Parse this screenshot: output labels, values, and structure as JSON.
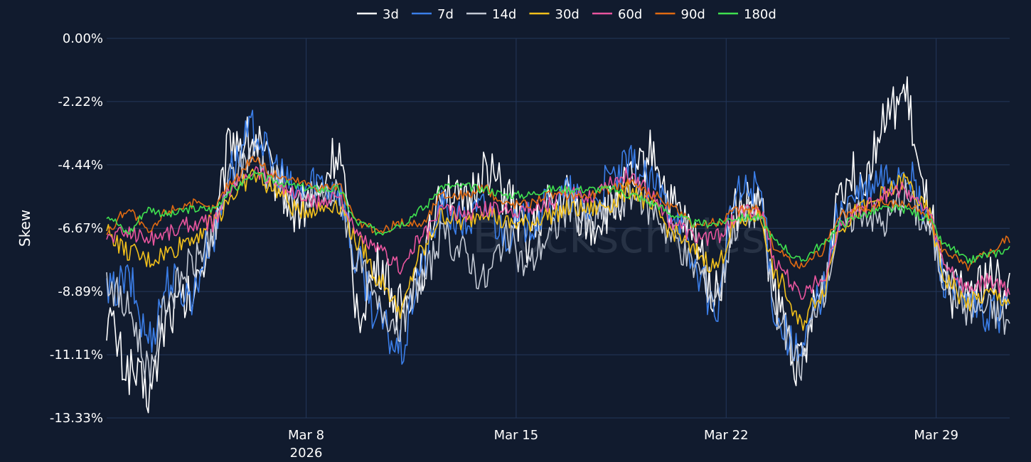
{
  "chart_data": {
    "type": "line",
    "title": "",
    "xlabel": "",
    "ylabel": "Skew",
    "watermark": "Blockscholes",
    "ylim": [
      -13.33,
      0
    ],
    "xlim": [
      0,
      43
    ],
    "y_ticks": [
      {
        "value": 0,
        "label": "0.00%"
      },
      {
        "value": -2.22,
        "label": "-2.22%"
      },
      {
        "value": -4.44,
        "label": "-4.44%"
      },
      {
        "value": -6.67,
        "label": "-6.67%"
      },
      {
        "value": -8.89,
        "label": "-8.89%"
      },
      {
        "value": -11.11,
        "label": "-11.11%"
      },
      {
        "value": -13.33,
        "label": "-13.33%"
      }
    ],
    "x_ticks": [
      {
        "value": 9.5,
        "label": "Mar 8",
        "sublabel": "2026"
      },
      {
        "value": 19.5,
        "label": "Mar 15",
        "sublabel": ""
      },
      {
        "value": 29.5,
        "label": "Mar 22",
        "sublabel": ""
      },
      {
        "value": 39.5,
        "label": "Mar 29",
        "sublabel": ""
      }
    ],
    "x": [
      0,
      1,
      2,
      3,
      4,
      5,
      6,
      7,
      8,
      9,
      10,
      11,
      12,
      13,
      14,
      15,
      16,
      17,
      18,
      19,
      20,
      21,
      22,
      23,
      24,
      25,
      26,
      27,
      28,
      29,
      30,
      31,
      32,
      33,
      34,
      35,
      36,
      37,
      38,
      39,
      40,
      41,
      42,
      43
    ],
    "series": [
      {
        "name": "3d",
        "color": "#ffffff",
        "values": [
          -9.8,
          -11.6,
          -12.4,
          -9.6,
          -9.2,
          -7.0,
          -3.5,
          -3.6,
          -4.8,
          -6.0,
          -5.6,
          -4.0,
          -9.5,
          -8.0,
          -9.5,
          -8.0,
          -5.0,
          -6.0,
          -4.5,
          -5.5,
          -7.0,
          -6.0,
          -5.5,
          -6.6,
          -6.0,
          -5.0,
          -4.0,
          -6.0,
          -7.0,
          -9.0,
          -6.0,
          -5.8,
          -9.5,
          -11.5,
          -9.0,
          -5.0,
          -4.8,
          -3.0,
          -2.0,
          -5.8,
          -9.0,
          -8.8,
          -8.5,
          -8.8
        ]
      },
      {
        "name": "7d",
        "color": "#3b7ee8",
        "values": [
          -9.0,
          -8.5,
          -10.5,
          -8.5,
          -9.0,
          -7.0,
          -4.5,
          -3.2,
          -4.5,
          -5.5,
          -5.0,
          -5.3,
          -8.0,
          -10.0,
          -11.0,
          -8.0,
          -6.0,
          -6.5,
          -6.0,
          -6.8,
          -6.5,
          -6.0,
          -5.5,
          -6.0,
          -5.0,
          -4.5,
          -5.2,
          -6.0,
          -8.0,
          -9.5,
          -5.5,
          -5.2,
          -10.0,
          -11.2,
          -9.0,
          -6.0,
          -5.5,
          -5.0,
          -4.6,
          -6.2,
          -8.5,
          -9.5,
          -9.8,
          -9.5
        ]
      },
      {
        "name": "14d",
        "color": "#c3c9d4",
        "values": [
          -8.5,
          -9.5,
          -11.5,
          -9.0,
          -8.0,
          -7.0,
          -4.8,
          -4.0,
          -5.0,
          -6.0,
          -5.5,
          -5.5,
          -8.0,
          -9.5,
          -10.0,
          -8.5,
          -7.0,
          -7.5,
          -8.5,
          -7.0,
          -8.0,
          -7.0,
          -6.0,
          -6.5,
          -6.0,
          -5.5,
          -6.0,
          -7.0,
          -8.0,
          -9.0,
          -6.5,
          -6.0,
          -10.0,
          -11.5,
          -9.0,
          -6.5,
          -6.0,
          -6.5,
          -5.5,
          -6.5,
          -8.5,
          -9.5,
          -9.5,
          -10.0
        ]
      },
      {
        "name": "30d",
        "color": "#f2c01b",
        "values": [
          -6.8,
          -7.5,
          -7.8,
          -7.5,
          -7.0,
          -6.5,
          -5.5,
          -4.8,
          -5.3,
          -6.0,
          -6.0,
          -5.8,
          -7.2,
          -8.5,
          -9.5,
          -7.5,
          -6.2,
          -6.5,
          -6.0,
          -6.5,
          -6.5,
          -6.2,
          -6.0,
          -6.0,
          -5.8,
          -5.3,
          -6.0,
          -6.8,
          -7.5,
          -8.0,
          -6.5,
          -6.2,
          -8.5,
          -10.0,
          -9.0,
          -6.5,
          -6.0,
          -5.5,
          -5.0,
          -6.0,
          -8.5,
          -9.3,
          -9.0,
          -9.2
        ]
      },
      {
        "name": "60d",
        "color": "#e8559e",
        "values": [
          -7.0,
          -6.8,
          -7.0,
          -6.8,
          -6.5,
          -6.5,
          -5.2,
          -4.6,
          -5.0,
          -5.5,
          -5.8,
          -5.5,
          -7.0,
          -7.5,
          -8.0,
          -7.0,
          -6.0,
          -6.2,
          -6.0,
          -6.0,
          -6.0,
          -5.8,
          -5.5,
          -5.5,
          -5.0,
          -4.8,
          -5.5,
          -6.5,
          -7.0,
          -7.0,
          -6.2,
          -6.0,
          -8.0,
          -9.0,
          -8.5,
          -6.5,
          -6.0,
          -5.5,
          -5.3,
          -6.0,
          -8.0,
          -8.8,
          -8.5,
          -8.8
        ]
      },
      {
        "name": "90d",
        "color": "#e06a12",
        "values": [
          -6.8,
          -6.0,
          -6.8,
          -6.0,
          -5.8,
          -6.0,
          -5.0,
          -4.2,
          -4.8,
          -5.0,
          -5.2,
          -5.2,
          -6.5,
          -6.8,
          -6.5,
          -6.5,
          -5.5,
          -5.5,
          -5.3,
          -5.8,
          -5.8,
          -5.5,
          -5.5,
          -5.5,
          -5.3,
          -5.0,
          -5.5,
          -6.0,
          -6.5,
          -6.5,
          -6.0,
          -6.0,
          -7.5,
          -8.0,
          -7.5,
          -6.2,
          -6.0,
          -5.8,
          -5.8,
          -6.2,
          -7.5,
          -8.0,
          -7.5,
          -7.0
        ]
      },
      {
        "name": "180d",
        "color": "#3fe04f",
        "values": [
          -6.2,
          -6.8,
          -6.0,
          -6.2,
          -6.0,
          -6.0,
          -5.3,
          -4.8,
          -5.0,
          -5.2,
          -5.3,
          -5.3,
          -6.5,
          -6.8,
          -6.5,
          -6.0,
          -5.2,
          -5.2,
          -5.3,
          -5.5,
          -5.5,
          -5.3,
          -5.3,
          -5.3,
          -5.3,
          -5.5,
          -5.8,
          -6.2,
          -6.5,
          -6.5,
          -6.3,
          -6.3,
          -7.2,
          -7.8,
          -7.3,
          -6.5,
          -6.2,
          -6.0,
          -6.0,
          -6.3,
          -7.3,
          -7.8,
          -7.6,
          -7.4
        ]
      }
    ],
    "grid": true,
    "legend_position": "top-center"
  }
}
